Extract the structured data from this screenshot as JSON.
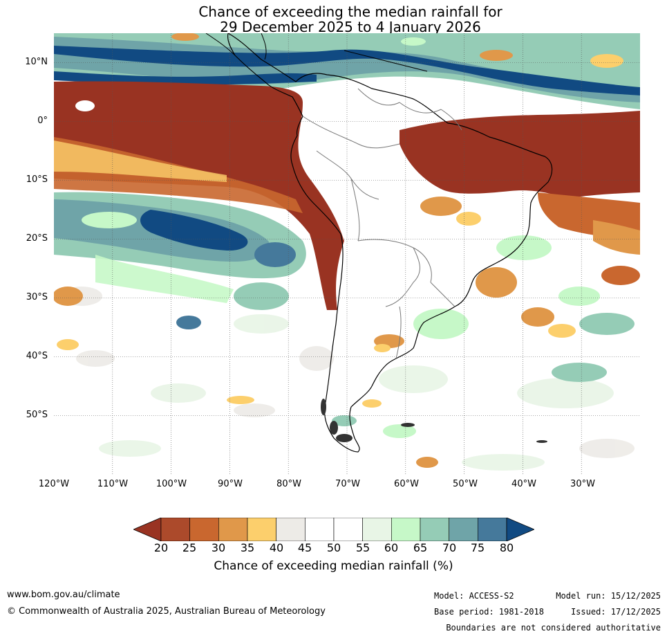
{
  "title": {
    "line1": "Chance of exceeding the median rainfall for",
    "line2": "29 December 2025 to 4 January 2026"
  },
  "axes": {
    "latitude_labels": [
      "10°N",
      "0°",
      "10°S",
      "20°S",
      "30°S",
      "40°S",
      "50°S"
    ],
    "longitude_labels": [
      "120°W",
      "110°W",
      "100°W",
      "90°W",
      "80°W",
      "70°W",
      "60°W",
      "50°W",
      "40°W",
      "30°W"
    ],
    "lat_range": [
      -60,
      15
    ],
    "lon_range": [
      -120,
      -20
    ]
  },
  "colorbar": {
    "ticks": [
      "20",
      "25",
      "30",
      "35",
      "40",
      "45",
      "50",
      "55",
      "60",
      "65",
      "70",
      "75",
      "80"
    ],
    "colors": [
      "#993322",
      "#ac4a2b",
      "#c9672f",
      "#e0984a",
      "#fccf6c",
      "#edebe7",
      "#ffffff",
      "#ffffff",
      "#e8f5e6",
      "#c6f8c8",
      "#95ccb6",
      "#6fa4a8",
      "#45799b",
      "#114a82"
    ],
    "label": "Chance of exceeding median rainfall (%)"
  },
  "footer": {
    "url": "www.bom.gov.au/climate",
    "copyright": "© Commonwealth of Australia 2025, Australian Bureau of Meteorology",
    "model": "Model: ACCESS-S2",
    "base_period": "Base period: 1981-2018",
    "model_run": "Model run: 15/12/2025",
    "issued": "Issued: 17/12/2025",
    "disclaimer": "Boundaries are not considered authoritative"
  }
}
